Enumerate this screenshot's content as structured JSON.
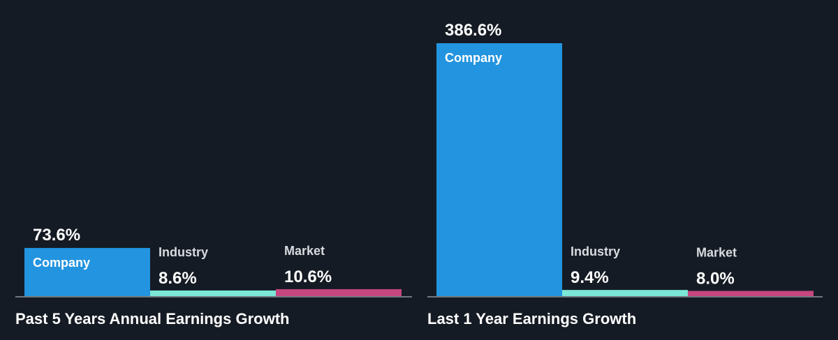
{
  "chart_data": [
    {
      "type": "bar",
      "title": "Past 5 Years Annual Earnings Growth",
      "unit": "%",
      "categories": [
        "Company",
        "Industry",
        "Market"
      ],
      "values": [
        73.6,
        8.6,
        10.6
      ],
      "value_labels": [
        "73.6%",
        "8.6%",
        "10.6%"
      ],
      "colors": [
        "#2394df",
        "#7be7d6",
        "#c6467f"
      ],
      "ylim": [
        0,
        386.6
      ],
      "grid": false
    },
    {
      "type": "bar",
      "title": "Last 1 Year Earnings Growth",
      "unit": "%",
      "categories": [
        "Company",
        "Industry",
        "Market"
      ],
      "values": [
        386.6,
        9.4,
        8.0
      ],
      "value_labels": [
        "386.6%",
        "9.4%",
        "8.0%"
      ],
      "colors": [
        "#2394df",
        "#7be7d6",
        "#c6467f"
      ],
      "ylim": [
        0,
        386.6
      ],
      "grid": false
    }
  ],
  "colors": {
    "background": "#151b24",
    "axis": "#cfd3d8",
    "text": "#ffffff"
  }
}
